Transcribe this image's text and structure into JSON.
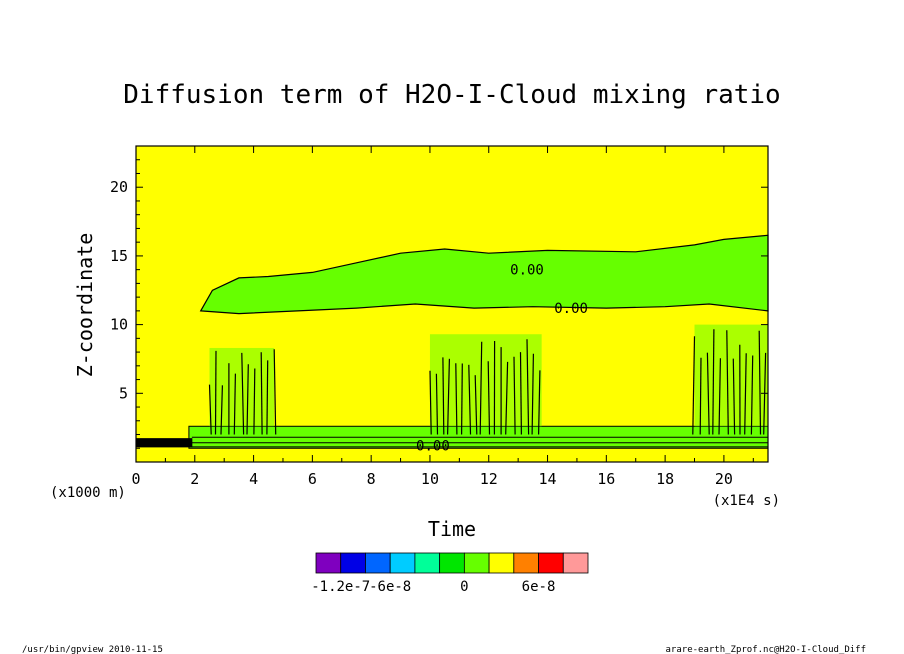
{
  "chart_data": {
    "type": "heatmap",
    "title": "Diffusion term of H2O-I-Cloud mixing ratio",
    "xlabel": "Time",
    "ylabel": "Z-coordinate",
    "x_unit": "(x1E4 s)",
    "y_unit": "(x1000 m)",
    "xlim": [
      0,
      21.5
    ],
    "ylim": [
      0,
      23
    ],
    "x_ticks": [
      0,
      2,
      4,
      6,
      8,
      10,
      12,
      14,
      16,
      18,
      20
    ],
    "y_ticks": [
      5,
      10,
      15,
      20
    ],
    "contour_labels": [
      {
        "text": "0.00",
        "x": 13.3,
        "y": 14.0
      },
      {
        "text": "0.00",
        "x": 14.8,
        "y": 11.2
      },
      {
        "text": "0.00",
        "x": 10.1,
        "y": 1.2
      }
    ],
    "colorbar": {
      "colors": [
        "#7f00bf",
        "#0000e6",
        "#0066ff",
        "#00ccff",
        "#00ff99",
        "#00e600",
        "#66ff00",
        "#ffff00",
        "#ff8000",
        "#ff0000",
        "#ff9999"
      ],
      "labels": [
        "-1.2e-7",
        "-6e-8",
        "0",
        "6e-8"
      ]
    },
    "background_value": 0,
    "background_color": "#ffff00"
  },
  "footer": {
    "left": "/usr/bin/gpview  2010-11-15",
    "right": "arare-earth_Zprof.nc@H2O-I-Cloud_Diff"
  }
}
